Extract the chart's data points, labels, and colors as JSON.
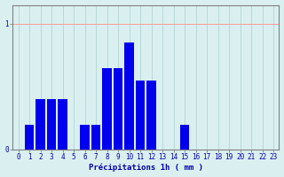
{
  "categories": [
    0,
    1,
    2,
    3,
    4,
    5,
    6,
    7,
    8,
    9,
    10,
    11,
    12,
    13,
    14,
    15,
    16,
    17,
    18,
    19,
    20,
    21,
    22,
    23
  ],
  "values": [
    0,
    0.2,
    0.4,
    0.4,
    0.4,
    0,
    0.2,
    0.2,
    0.65,
    0.65,
    0.85,
    0.55,
    0.55,
    0,
    0,
    0.2,
    0,
    0,
    0,
    0,
    0,
    0,
    0,
    0
  ],
  "bar_color": "#0000ee",
  "background_color": "#daf0f0",
  "grid_color_h": "#ff9999",
  "grid_color_v": "#b8d8d8",
  "axis_color": "#808080",
  "text_color": "#0000aa",
  "xlabel": "Précipitations 1h ( mm )",
  "ylim": [
    0,
    1.15
  ],
  "xlim": [
    -0.5,
    23.5
  ],
  "yticks": [
    0,
    1
  ],
  "xticks": [
    0,
    1,
    2,
    3,
    4,
    5,
    6,
    7,
    8,
    9,
    10,
    11,
    12,
    13,
    14,
    15,
    16,
    17,
    18,
    19,
    20,
    21,
    22,
    23
  ],
  "label_fontsize": 6.5,
  "tick_fontsize": 5.5
}
